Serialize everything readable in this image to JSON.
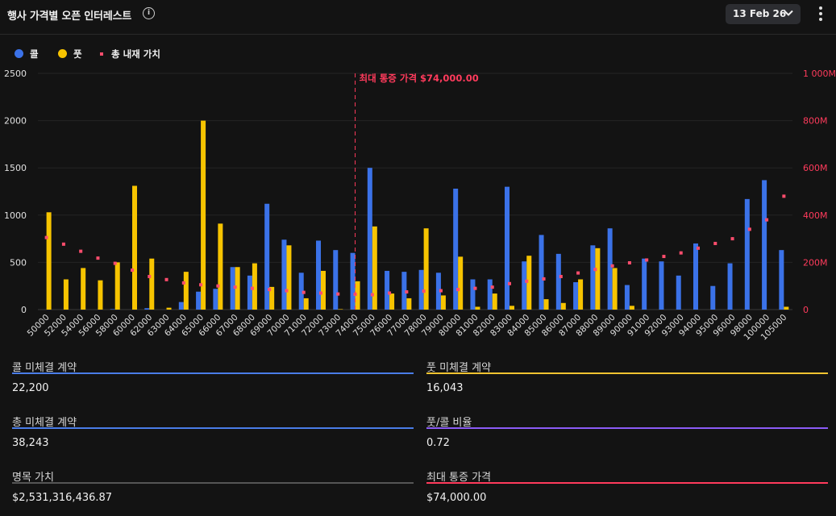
{
  "header": {
    "title": "행사 가격별 오픈 인터레스트",
    "info_icon": "info-icon",
    "date": "13 Feb 26",
    "more_icon": "more-vertical-icon"
  },
  "chart_data": {
    "type": "bar",
    "legend": [
      {
        "label": "콜",
        "color": "#3b72e8",
        "shape": "circle"
      },
      {
        "label": "풋",
        "color": "#f7c400",
        "shape": "circle"
      },
      {
        "label": "총 내재 가치",
        "color": "#ff4d6d",
        "shape": "square"
      }
    ],
    "categories": [
      "50000",
      "52000",
      "54000",
      "56000",
      "58000",
      "60000",
      "62000",
      "63000",
      "64000",
      "65000",
      "66000",
      "67000",
      "68000",
      "69000",
      "70000",
      "71000",
      "72000",
      "73000",
      "74000",
      "75000",
      "76000",
      "77000",
      "78000",
      "79000",
      "80000",
      "81000",
      "82000",
      "83000",
      "84000",
      "85000",
      "86000",
      "87000",
      "88000",
      "89000",
      "90000",
      "91000",
      "92000",
      "93000",
      "94000",
      "95000",
      "96000",
      "98000",
      "100000",
      "105000"
    ],
    "series": [
      {
        "name": "콜",
        "color": "#3b72e8",
        "axis": "left",
        "values": [
          0,
          0,
          0,
          0,
          5,
          0,
          15,
          0,
          80,
          190,
          220,
          450,
          360,
          1120,
          740,
          390,
          730,
          630,
          600,
          1500,
          410,
          400,
          420,
          390,
          1280,
          320,
          320,
          1300,
          510,
          790,
          590,
          290,
          680,
          860,
          260,
          540,
          510,
          360,
          700,
          250,
          490,
          1170,
          1370,
          630
        ]
      },
      {
        "name": "풋",
        "color": "#f7c400",
        "axis": "left",
        "values": [
          1030,
          320,
          440,
          310,
          500,
          1310,
          540,
          20,
          400,
          2000,
          910,
          450,
          490,
          240,
          680,
          120,
          410,
          5,
          300,
          880,
          170,
          120,
          860,
          150,
          560,
          30,
          170,
          40,
          570,
          110,
          70,
          320,
          650,
          440,
          40,
          0,
          0,
          0,
          0,
          0,
          0,
          0,
          0,
          30
        ]
      },
      {
        "name": "총 내재 가치",
        "color": "#ff4d6d",
        "axis": "right",
        "type": "scatter",
        "values": [
          305,
          277,
          247,
          218,
          196,
          167,
          140,
          127,
          113,
          105,
          100,
          95,
          90,
          85,
          80,
          73,
          70,
          66,
          65,
          63,
          70,
          75,
          78,
          80,
          85,
          90,
          95,
          110,
          120,
          130,
          140,
          155,
          170,
          185,
          198,
          210,
          225,
          240,
          260,
          280,
          300,
          340,
          380,
          480
        ]
      }
    ],
    "y_left": {
      "min": 0,
      "max": 2500,
      "ticks": [
        "0",
        "500",
        "1000",
        "1500",
        "2000",
        "2500"
      ]
    },
    "y_right": {
      "min": 0,
      "max": 1000,
      "unit": "M",
      "ticks": [
        "0",
        "200M",
        "400M",
        "600M",
        "800M",
        "1 000M"
      ]
    },
    "max_pain": {
      "strike": "74000",
      "label": "최대 통증 가격 $74,000.00"
    },
    "grid": true,
    "legend_position": "top-left"
  },
  "stats": [
    {
      "label": "콜 미체결 계약",
      "value": "22,200",
      "color": "#4a7de8"
    },
    {
      "label": "풋 미체결 계약",
      "value": "16,043",
      "color": "#f2c431"
    },
    {
      "label": "총 미체결 계약",
      "value": "38,243",
      "color": "#4a7de8"
    },
    {
      "label": "풋/콜 비율",
      "value": "0.72",
      "color": "#8b5cf6"
    },
    {
      "label": "명목 가치",
      "value": "$2,531,316,436.87",
      "color": "#555555"
    },
    {
      "label": "최대 통증 가격",
      "value": "$74,000.00",
      "color": "#ff3b5c"
    }
  ]
}
